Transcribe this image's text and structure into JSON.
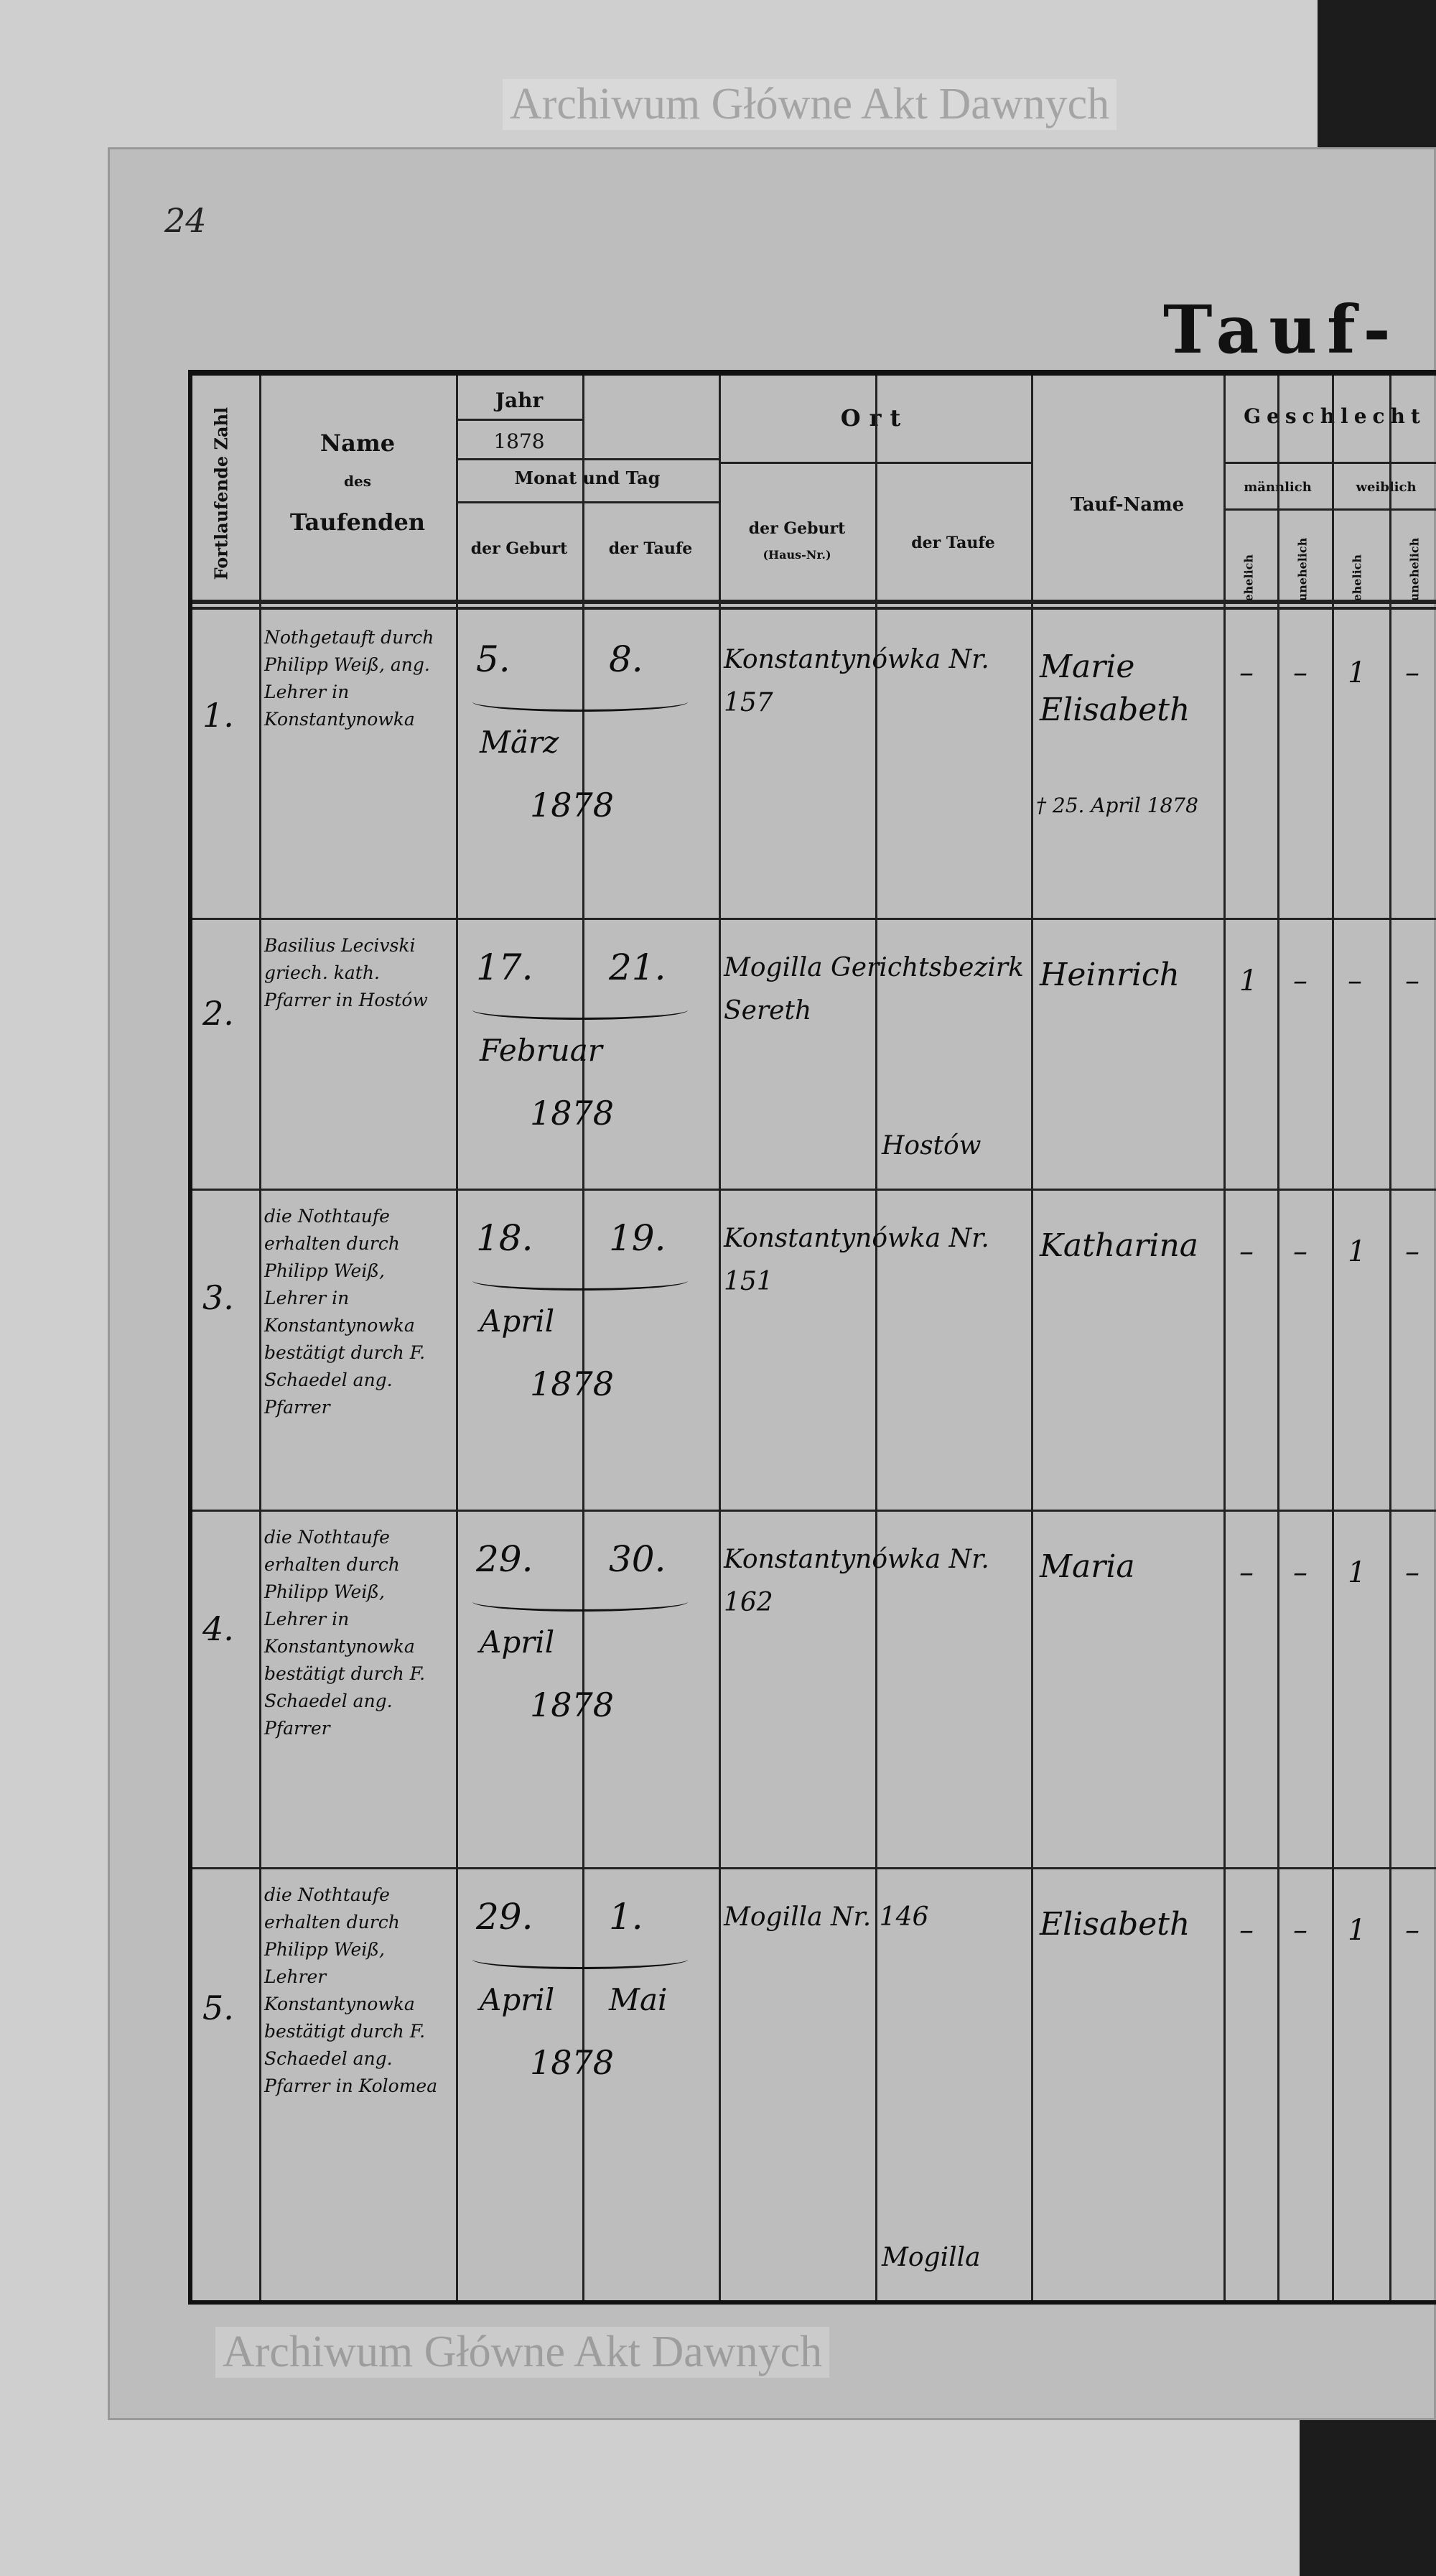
{
  "page_number": "24",
  "title": "Tauf-",
  "header": {
    "number": "Fortlaufende Zahl",
    "name_label": "Name",
    "name_des": "des",
    "name_sub": "Taufenden",
    "jahr": "Jahr",
    "year": "1878",
    "monat_tag": "Monat und Tag",
    "date_birth": "der Geburt",
    "date_baptism": "der Taufe",
    "ort": "Ort",
    "ort_birth": "der Geburt",
    "ort_birth_sub": "(Haus-Nr.)",
    "ort_baptism": "der Taufe",
    "tauf_name": "Tauf-Name",
    "geschlecht": "Geschlecht",
    "maennlich": "männlich",
    "weiblich": "weiblich",
    "ehelich": "ehelich",
    "unehelich": "unehelich"
  },
  "rows": [
    {
      "num": "1.",
      "baptizer": "Nothgetauft durch Philipp Weiß, ang. Lehrer in Konstantynowka",
      "birth_day": "5.",
      "baptism_day": "8.",
      "month": "März",
      "baptism_month": "",
      "year": "1878",
      "place_birth": "Konstantynówka Nr. 157",
      "place_baptism": "",
      "name": "Marie Elisabeth",
      "note": "† 25. April 1878",
      "sex": [
        "–",
        "–",
        "1",
        "–"
      ]
    },
    {
      "num": "2.",
      "baptizer": "Basilius Lecivski griech. kath. Pfarrer in Hostów",
      "birth_day": "17.",
      "baptism_day": "21.",
      "month": "Februar",
      "baptism_month": "",
      "year": "1878",
      "place_birth": "Mogilla Gerichtsbezirk Sereth",
      "place_baptism": "Hostów",
      "name": "Heinrich",
      "note": "",
      "sex": [
        "1",
        "–",
        "–",
        "–"
      ]
    },
    {
      "num": "3.",
      "baptizer": "die Nothtaufe erhalten durch Philipp Weiß, Lehrer in Konstantynowka bestätigt durch F. Schaedel ang. Pfarrer",
      "birth_day": "18.",
      "baptism_day": "19.",
      "month": "April",
      "baptism_month": "",
      "year": "1878",
      "place_birth": "Konstantynówka Nr. 151",
      "place_baptism": "",
      "name": "Katharina",
      "note": "",
      "sex": [
        "–",
        "–",
        "1",
        "–"
      ]
    },
    {
      "num": "4.",
      "baptizer": "die Nothtaufe erhalten durch Philipp Weiß, Lehrer in Konstantynowka bestätigt durch F. Schaedel ang. Pfarrer",
      "birth_day": "29.",
      "baptism_day": "30.",
      "month": "April",
      "baptism_month": "",
      "year": "1878",
      "place_birth": "Konstantynówka Nr. 162",
      "place_baptism": "",
      "name": "Maria",
      "note": "",
      "sex": [
        "–",
        "–",
        "1",
        "–"
      ]
    },
    {
      "num": "5.",
      "baptizer": "die Nothtaufe erhalten durch Philipp Weiß, Lehrer Konstantynowka bestätigt durch F. Schaedel ang. Pfarrer in Kolomea",
      "birth_day": "29.",
      "baptism_day": "1.",
      "month": "April",
      "baptism_month": "Mai",
      "year": "1878",
      "place_birth": "Mogilla Nr. 146",
      "place_baptism": "Mogilla",
      "name": "Elisabeth",
      "note": "",
      "sex": [
        "–",
        "–",
        "1",
        "–"
      ]
    }
  ],
  "watermark": "Archiwum Główne Akt Dawnych"
}
